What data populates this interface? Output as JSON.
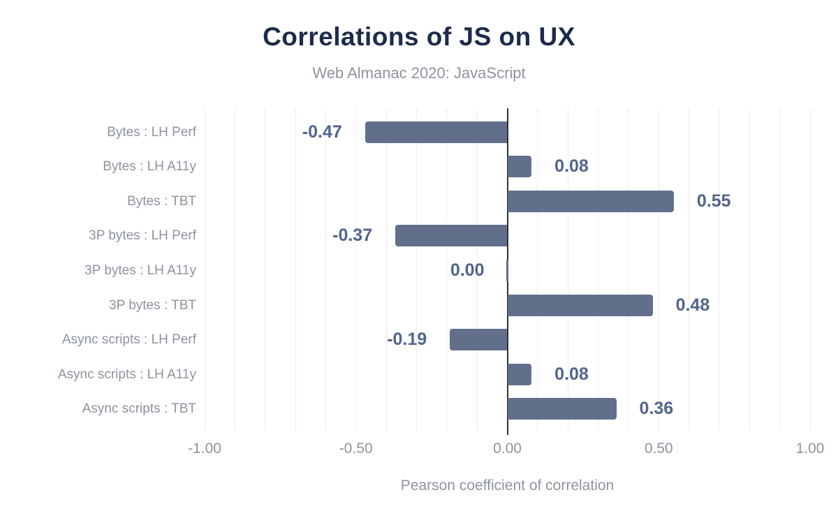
{
  "header": {
    "title": "Correlations of JS on UX",
    "subtitle": "Web Almanac 2020: JavaScript"
  },
  "chart_data": {
    "type": "bar",
    "orientation": "horizontal",
    "title": "Correlations of JS on UX",
    "subtitle": "Web Almanac 2020: JavaScript",
    "categories": [
      "Bytes : LH Perf",
      "Bytes : LH A11y",
      "Bytes : TBT",
      "3P bytes : LH Perf",
      "3P bytes : LH A11y",
      "3P bytes : TBT",
      "Async scripts : LH Perf",
      "Async scripts : LH A11y",
      "Async scripts : TBT"
    ],
    "values": [
      -0.47,
      0.08,
      0.55,
      -0.37,
      0.0,
      0.48,
      -0.19,
      0.08,
      0.36
    ],
    "data_labels": [
      "-0.47",
      "0.08",
      "0.55",
      "-0.37",
      "0.00",
      "0.48",
      "-0.19",
      "0.08",
      "0.36"
    ],
    "xlabel": "Pearson coefficient of correlation",
    "ylabel": "",
    "xlim": [
      -1,
      1
    ],
    "x_ticks": [
      {
        "value": -1.0,
        "label": "-1.00"
      },
      {
        "value": -0.5,
        "label": "-0.50"
      },
      {
        "value": 0.0,
        "label": "0.00"
      },
      {
        "value": 0.5,
        "label": "0.50"
      },
      {
        "value": 1.0,
        "label": "1.00"
      }
    ],
    "gridline_step": 0.1,
    "grid": "vertical",
    "legend": "none",
    "colors": {
      "bar": "#616f8b",
      "data_label": "#51648c",
      "title": "#1c2b4a",
      "muted_text": "#8d939e",
      "gridline": "#ebebf0",
      "zero_line": "#2f3033",
      "background": "#ffffff"
    }
  }
}
